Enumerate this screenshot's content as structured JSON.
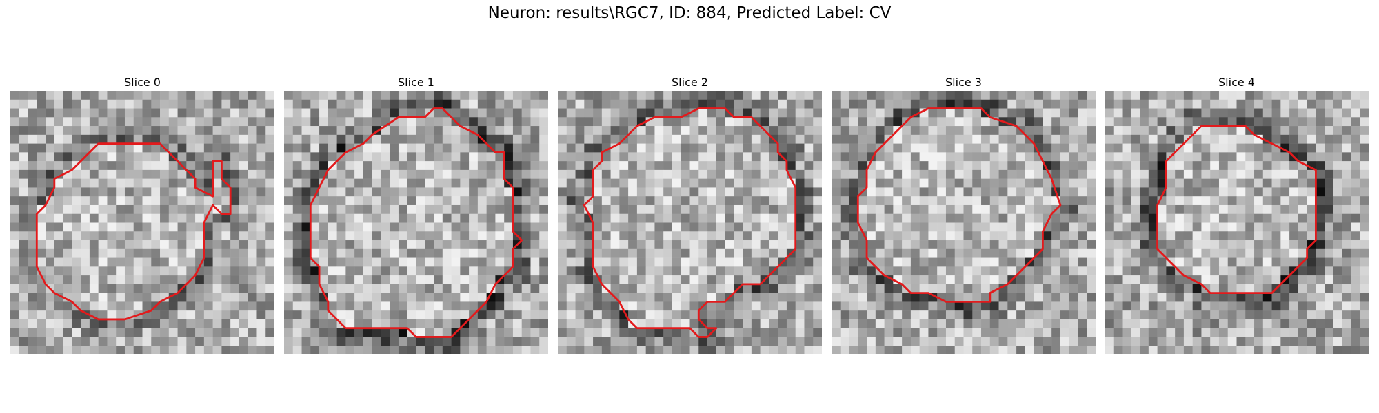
{
  "figure": {
    "title": "Neuron: results\\RGC7, ID: 884, Predicted Label: CV"
  },
  "colors": {
    "contour": "#e31a1c",
    "background": "#ffffff"
  },
  "colormap": "gray",
  "grid_size": 30,
  "slices": [
    {
      "label": "Slice 0",
      "seed": 11,
      "dark_ring": 0.15,
      "contour": [
        [
          10,
          6
        ],
        [
          17,
          6
        ],
        [
          19,
          8
        ],
        [
          21,
          10
        ],
        [
          21,
          11
        ],
        [
          23,
          12
        ],
        [
          23,
          8
        ],
        [
          24,
          8
        ],
        [
          24,
          10
        ],
        [
          25,
          11
        ],
        [
          25,
          14
        ],
        [
          24,
          14
        ],
        [
          23,
          13
        ],
        [
          22,
          15
        ],
        [
          22,
          19
        ],
        [
          21,
          21
        ],
        [
          20,
          22
        ],
        [
          19,
          23
        ],
        [
          17,
          24
        ],
        [
          16,
          25
        ],
        [
          13,
          26
        ],
        [
          10,
          26
        ],
        [
          8,
          25
        ],
        [
          7,
          24
        ],
        [
          5,
          23
        ],
        [
          4,
          22
        ],
        [
          3,
          20
        ],
        [
          3,
          19
        ],
        [
          3,
          16
        ],
        [
          3,
          14
        ],
        [
          4,
          13
        ],
        [
          5,
          11
        ],
        [
          5,
          10
        ],
        [
          7,
          9
        ],
        [
          9,
          7
        ]
      ]
    },
    {
      "label": "Slice 1",
      "seed": 23,
      "dark_ring": 0.35,
      "contour": [
        [
          10,
          5
        ],
        [
          13,
          3
        ],
        [
          16,
          3
        ],
        [
          17,
          2
        ],
        [
          18,
          2
        ],
        [
          20,
          4
        ],
        [
          22,
          5
        ],
        [
          23,
          6
        ],
        [
          24,
          7
        ],
        [
          25,
          7
        ],
        [
          25,
          10
        ],
        [
          26,
          11
        ],
        [
          26,
          16
        ],
        [
          27,
          17
        ],
        [
          26,
          18
        ],
        [
          26,
          20
        ],
        [
          25,
          21
        ],
        [
          24,
          22
        ],
        [
          23,
          24
        ],
        [
          22,
          25
        ],
        [
          21,
          26
        ],
        [
          20,
          27
        ],
        [
          19,
          28
        ],
        [
          15,
          28
        ],
        [
          14,
          27
        ],
        [
          7,
          27
        ],
        [
          6,
          26
        ],
        [
          5,
          25
        ],
        [
          5,
          24
        ],
        [
          4,
          22
        ],
        [
          4,
          20
        ],
        [
          3,
          19
        ],
        [
          3,
          17
        ],
        [
          3,
          13
        ],
        [
          4,
          11
        ],
        [
          5,
          9
        ],
        [
          6,
          8
        ],
        [
          7,
          7
        ],
        [
          9,
          6
        ]
      ]
    },
    {
      "label": "Slice 2",
      "seed": 37,
      "dark_ring": 0.25,
      "contour": [
        [
          11,
          3
        ],
        [
          14,
          3
        ],
        [
          16,
          2
        ],
        [
          19,
          2
        ],
        [
          20,
          3
        ],
        [
          22,
          3
        ],
        [
          24,
          5
        ],
        [
          25,
          6
        ],
        [
          25,
          7
        ],
        [
          26,
          8
        ],
        [
          26,
          9
        ],
        [
          27,
          11
        ],
        [
          27,
          18
        ],
        [
          26,
          19
        ],
        [
          25,
          20
        ],
        [
          24,
          21
        ],
        [
          23,
          22
        ],
        [
          21,
          22
        ],
        [
          20,
          23
        ],
        [
          19,
          24
        ],
        [
          17,
          24
        ],
        [
          16,
          25
        ],
        [
          16,
          26
        ],
        [
          17,
          27
        ],
        [
          18,
          27
        ],
        [
          17,
          28
        ],
        [
          16,
          28
        ],
        [
          15,
          27
        ],
        [
          9,
          27
        ],
        [
          8,
          26
        ],
        [
          7,
          24
        ],
        [
          5,
          22
        ],
        [
          4,
          20
        ],
        [
          4,
          18
        ],
        [
          4,
          15
        ],
        [
          3,
          13
        ],
        [
          4,
          12
        ],
        [
          4,
          9
        ],
        [
          5,
          8
        ],
        [
          5,
          7
        ],
        [
          7,
          6
        ],
        [
          9,
          4
        ]
      ]
    },
    {
      "label": "Slice 3",
      "seed": 49,
      "dark_ring": 0.3,
      "contour": [
        [
          11,
          2
        ],
        [
          17,
          2
        ],
        [
          18,
          3
        ],
        [
          21,
          4
        ],
        [
          23,
          6
        ],
        [
          24,
          8
        ],
        [
          25,
          10
        ],
        [
          26,
          13
        ],
        [
          25,
          14
        ],
        [
          24,
          16
        ],
        [
          24,
          18
        ],
        [
          23,
          19
        ],
        [
          22,
          20
        ],
        [
          21,
          21
        ],
        [
          20,
          22
        ],
        [
          18,
          23
        ],
        [
          18,
          24
        ],
        [
          15,
          24
        ],
        [
          13,
          24
        ],
        [
          11,
          23
        ],
        [
          9,
          23
        ],
        [
          8,
          22
        ],
        [
          6,
          21
        ],
        [
          5,
          20
        ],
        [
          4,
          19
        ],
        [
          4,
          17
        ],
        [
          3,
          15
        ],
        [
          3,
          12
        ],
        [
          4,
          11
        ],
        [
          4,
          9
        ],
        [
          5,
          7
        ],
        [
          6,
          6
        ],
        [
          7,
          5
        ],
        [
          9,
          3
        ]
      ]
    },
    {
      "label": "Slice 4",
      "seed": 61,
      "dark_ring": 0.4,
      "contour": [
        [
          11,
          4
        ],
        [
          16,
          4
        ],
        [
          17,
          5
        ],
        [
          19,
          6
        ],
        [
          21,
          7
        ],
        [
          22,
          8
        ],
        [
          24,
          9
        ],
        [
          24,
          10
        ],
        [
          24,
          12
        ],
        [
          24,
          17
        ],
        [
          23,
          18
        ],
        [
          23,
          19
        ],
        [
          22,
          20
        ],
        [
          21,
          21
        ],
        [
          20,
          22
        ],
        [
          19,
          23
        ],
        [
          12,
          23
        ],
        [
          11,
          22
        ],
        [
          9,
          21
        ],
        [
          8,
          20
        ],
        [
          7,
          19
        ],
        [
          6,
          18
        ],
        [
          6,
          16
        ],
        [
          6,
          13
        ],
        [
          7,
          11
        ],
        [
          7,
          10
        ],
        [
          7,
          8
        ],
        [
          8,
          7
        ],
        [
          10,
          5
        ]
      ]
    }
  ]
}
